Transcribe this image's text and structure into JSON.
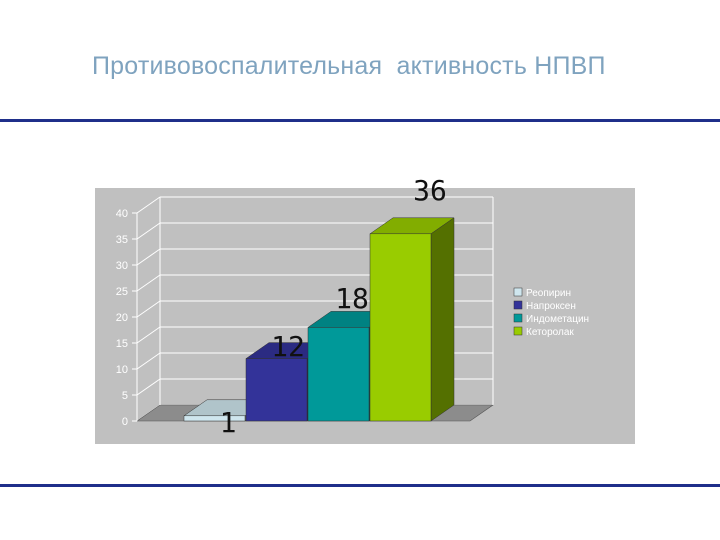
{
  "slide": {
    "title": "Противовоспалительная  активность НПВП"
  },
  "chart_data": {
    "type": "bar",
    "title": "",
    "xlabel": "",
    "ylabel": "",
    "ylim": [
      0,
      40
    ],
    "yticks": [
      0,
      5,
      10,
      15,
      20,
      25,
      30,
      35,
      40
    ],
    "grid": true,
    "three_d": true,
    "legend_position": "right",
    "series": [
      {
        "name": "Реопирин",
        "value": 1,
        "color": "#cfe6ee"
      },
      {
        "name": "Напроксен",
        "value": 12,
        "color": "#333399"
      },
      {
        "name": "Индометацин",
        "value": 18,
        "color": "#009999"
      },
      {
        "name": "Кеторолак",
        "value": 36,
        "color": "#99cc00"
      }
    ],
    "plot_background": "#c0c0c0"
  }
}
